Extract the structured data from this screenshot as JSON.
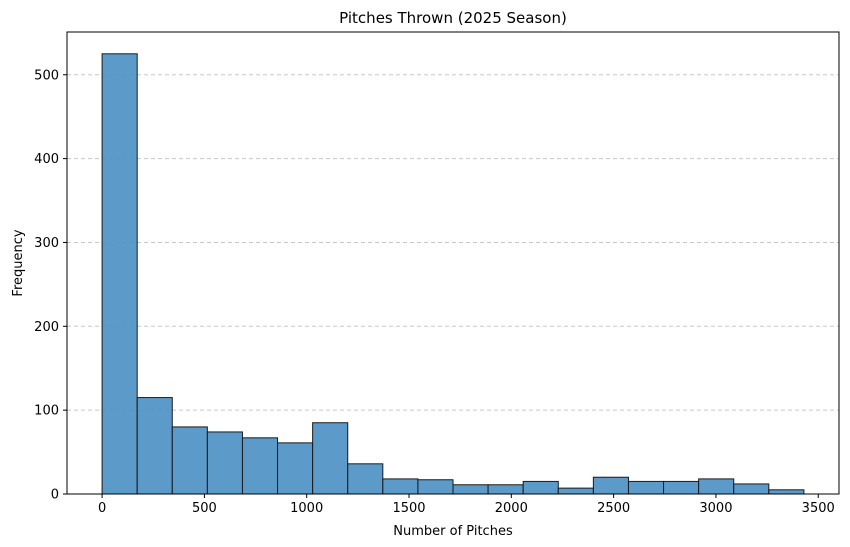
{
  "chart_data": {
    "type": "bar",
    "title": "Pitches Thrown (2025 Season)",
    "xlabel": "Number of Pitches",
    "ylabel": "Frequency",
    "bin_edges": [
      0,
      171.5,
      343,
      514.5,
      686,
      857.5,
      1029,
      1200.5,
      1372,
      1543.5,
      1715,
      1886.5,
      2058,
      2229.5,
      2401,
      2572.5,
      2744,
      2915.5,
      3087,
      3258.5,
      3430
    ],
    "values": [
      525,
      115,
      80,
      74,
      67,
      61,
      85,
      36,
      18,
      17,
      11,
      11,
      15,
      7,
      20,
      15,
      15,
      18,
      12,
      5
    ],
    "xlim": [
      -171.5,
      3601.5
    ],
    "ylim": [
      0,
      551
    ],
    "x_ticks": [
      0,
      500,
      1000,
      1500,
      2000,
      2500,
      3000,
      3500
    ],
    "x_tick_labels": [
      "0",
      "500",
      "1000",
      "1500",
      "2000",
      "2500",
      "3000",
      "3500"
    ],
    "y_ticks": [
      0,
      100,
      200,
      300,
      400,
      500
    ],
    "y_tick_labels": [
      "0",
      "100",
      "200",
      "300",
      "400",
      "500"
    ],
    "grid": "y-dashed",
    "colors": {
      "bar_fill": "#4a8fc4",
      "bar_edge": "#1a1a1a",
      "grid": "#c8c8c8"
    }
  }
}
